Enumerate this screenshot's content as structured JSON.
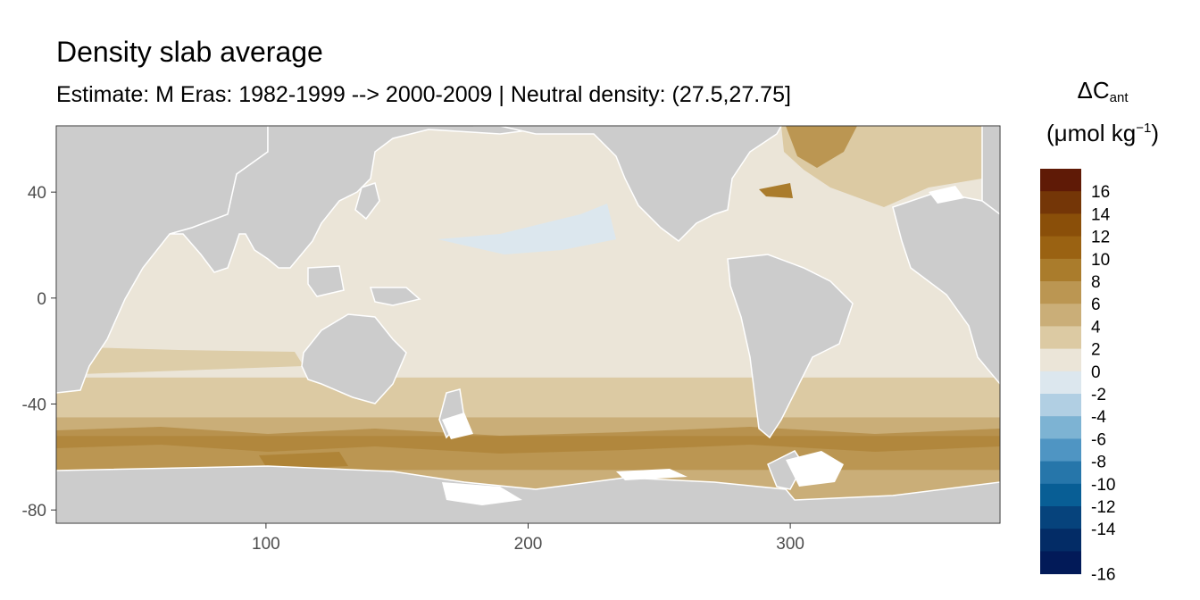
{
  "chart_data": {
    "type": "heatmap",
    "title": "Density slab average",
    "subtitle": "Estimate: M Eras: 1982-1999 --> 2000-2009 | Neutral density: (27.5,27.75]",
    "xlabel": "",
    "ylabel": "",
    "xlim": [
      20,
      380
    ],
    "ylim": [
      -85,
      65
    ],
    "x_ticks": [
      100,
      200,
      300
    ],
    "y_ticks": [
      40,
      0,
      -40,
      -80
    ],
    "land_color": "#cccccc",
    "legend": {
      "title_symbol": "ΔC",
      "title_subscript": "ant",
      "unit_prefix": "(μmol kg",
      "unit_superscript": "−1",
      "unit_suffix": ")",
      "placement": "right",
      "bins": [
        {
          "label": "16",
          "color": "#5f1a06"
        },
        {
          "label": "14",
          "color": "#743607"
        },
        {
          "label": "12",
          "color": "#8a4f09"
        },
        {
          "label": "10",
          "color": "#9a6212"
        },
        {
          "label": "8",
          "color": "#aa7c2c"
        },
        {
          "label": "6",
          "color": "#bb9652"
        },
        {
          "label": "4",
          "color": "#caae78"
        },
        {
          "label": "2",
          "color": "#dccaa3"
        },
        {
          "label": "0",
          "color": "#ebe5d8"
        },
        {
          "label": "-2",
          "color": "#dce7ee"
        },
        {
          "label": "-4",
          "color": "#b1cfe3"
        },
        {
          "label": "-6",
          "color": "#7db3d3"
        },
        {
          "label": "-8",
          "color": "#4f95c3"
        },
        {
          "label": "-10",
          "color": "#2676aa"
        },
        {
          "label": "-12",
          "color": "#085e95"
        },
        {
          "label": "-14",
          "color": "#06437c"
        },
        {
          "label": "",
          "color": "#032c66"
        },
        {
          "label": "-16",
          "color": "#021a58"
        }
      ]
    },
    "zonal_bands": [
      {
        "lat_max": 65,
        "lat_min": -30,
        "value": "0 to 2"
      },
      {
        "lat_max": -30,
        "lat_min": -45,
        "value": "2 to 4"
      },
      {
        "lat_max": -45,
        "lat_min": -52,
        "value": "4 to 6"
      },
      {
        "lat_max": -52,
        "lat_min": -65,
        "value": "6 to 8"
      },
      {
        "lat_max": -65,
        "lat_min": -80,
        "value": "2 to 6"
      }
    ]
  }
}
